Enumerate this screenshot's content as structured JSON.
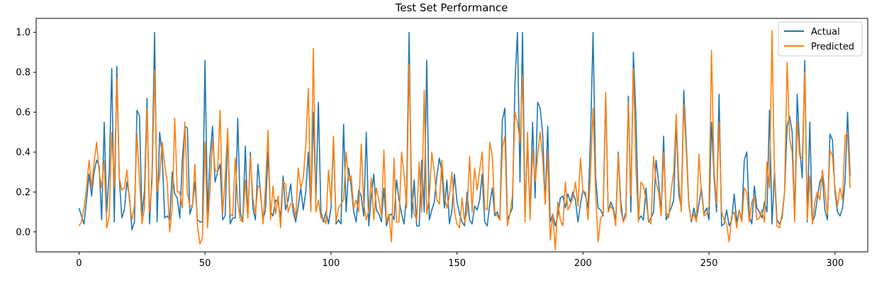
{
  "chart_data": {
    "type": "line",
    "title": "Test Set Performance",
    "xlabel": "",
    "ylabel": "",
    "xlim": [
      -17,
      313
    ],
    "ylim": [
      -0.1,
      1.07
    ],
    "x_ticks": [
      0,
      50,
      100,
      150,
      200,
      250,
      300
    ],
    "y_ticks": [
      0.0,
      0.2,
      0.4,
      0.6,
      0.8,
      1.0
    ],
    "x_tick_labels": [
      "0",
      "50",
      "100",
      "150",
      "200",
      "250",
      "300"
    ],
    "y_tick_labels": [
      "0.0",
      "0.2",
      "0.4",
      "0.6",
      "0.8",
      "1.0"
    ],
    "grid": false,
    "legend_position": "top-right",
    "series": [
      {
        "name": "Actual",
        "color": "#1f77b4",
        "values": [
          0.12,
          0.08,
          0.04,
          0.16,
          0.29,
          0.18,
          0.3,
          0.36,
          0.33,
          0.06,
          0.55,
          0.1,
          0.3,
          0.82,
          0.05,
          0.83,
          0.27,
          0.07,
          0.11,
          0.25,
          0.18,
          0.01,
          0.05,
          0.61,
          0.58,
          0.08,
          0.21,
          0.67,
          0.04,
          0.3,
          1.0,
          0.05,
          0.5,
          0.39,
          0.07,
          0.08,
          0.06,
          0.3,
          0.19,
          0.17,
          0.07,
          0.36,
          0.53,
          0.52,
          0.09,
          0.13,
          0.25,
          0.06,
          0.05,
          0.05,
          0.86,
          0.09,
          0.38,
          0.53,
          0.25,
          0.3,
          0.34,
          0.06,
          0.08,
          0.5,
          0.04,
          0.07,
          0.07,
          0.57,
          0.1,
          0.05,
          0.43,
          0.07,
          0.4,
          0.12,
          0.06,
          0.34,
          0.2,
          0.06,
          0.11,
          0.4,
          0.1,
          0.08,
          0.16,
          0.15,
          0.07,
          0.28,
          0.11,
          0.16,
          0.24,
          0.1,
          0.05,
          0.13,
          0.22,
          0.11,
          0.2,
          0.4,
          0.11,
          0.6,
          0.16,
          0.65,
          0.1,
          0.05,
          0.1,
          0.04,
          0.12,
          0.46,
          0.04,
          0.06,
          0.04,
          0.54,
          0.1,
          0.32,
          0.23,
          0.1,
          0.05,
          0.21,
          0.18,
          0.08,
          0.5,
          0.03,
          0.18,
          0.29,
          0.11,
          0.09,
          0.05,
          0.22,
          0.03,
          0.08,
          0.09,
          0.06,
          0.26,
          0.16,
          0.09,
          0.04,
          0.19,
          1.0,
          0.07,
          0.26,
          0.03,
          0.03,
          0.36,
          0.1,
          0.86,
          0.06,
          0.11,
          0.15,
          0.28,
          0.37,
          0.3,
          0.12,
          0.26,
          0.04,
          0.11,
          0.29,
          0.15,
          0.09,
          0.05,
          0.03,
          0.2,
          0.06,
          0.04,
          0.13,
          0.11,
          0.16,
          0.29,
          0.05,
          0.03,
          0.14,
          0.22,
          0.08,
          0.1,
          0.06,
          0.56,
          0.62,
          0.06,
          0.09,
          0.12,
          0.75,
          1.0,
          0.25,
          1.0,
          0.08,
          0.46,
          0.08,
          0.55,
          0.17,
          0.65,
          0.62,
          0.49,
          0.14,
          0.53,
          0.05,
          0.09,
          0.03,
          0.08,
          0.17,
          0.18,
          0.12,
          0.19,
          0.15,
          0.2,
          0.16,
          0.05,
          0.14,
          0.21,
          0.18,
          0.12,
          0.48,
          1.0,
          0.28,
          0.12,
          0.11,
          0.08,
          0.69,
          0.1,
          0.15,
          0.12,
          0.06,
          0.4,
          0.15,
          0.05,
          0.1,
          0.68,
          0.1,
          0.9,
          0.58,
          0.06,
          0.08,
          0.06,
          0.22,
          0.05,
          0.07,
          0.1,
          0.36,
          0.25,
          0.1,
          0.48,
          0.06,
          0.09,
          0.12,
          0.16,
          0.56,
          0.19,
          0.12,
          0.71,
          0.44,
          0.14,
          0.05,
          0.12,
          0.06,
          0.14,
          0.22,
          0.09,
          0.12,
          0.06,
          0.55,
          0.28,
          0.1,
          0.69,
          0.03,
          0.04,
          0.11,
          0.03,
          0.06,
          0.19,
          0.05,
          0.11,
          0.06,
          0.36,
          0.4,
          0.08,
          0.04,
          0.23,
          0.12,
          0.1,
          0.07,
          0.15,
          0.1,
          0.61,
          0.04,
          0.3,
          0.06,
          0.04,
          0.07,
          0.2,
          0.53,
          0.58,
          0.5,
          0.06,
          0.69,
          0.42,
          0.27,
          0.86,
          0.05,
          0.55,
          0.05,
          0.08,
          0.17,
          0.25,
          0.28,
          0.11,
          0.06,
          0.49,
          0.46,
          0.2,
          0.1,
          0.08,
          0.12,
          0.25,
          0.6,
          0.28
        ]
      },
      {
        "name": "Predicted",
        "color": "#ff7f0e",
        "values": [
          0.03,
          0.05,
          0.12,
          0.22,
          0.36,
          0.22,
          0.35,
          0.45,
          0.3,
          0.22,
          0.36,
          0.02,
          0.08,
          0.5,
          0.22,
          0.77,
          0.27,
          0.21,
          0.22,
          0.31,
          0.16,
          0.06,
          0.13,
          0.49,
          0.26,
          0.04,
          0.12,
          0.62,
          0.1,
          0.25,
          0.81,
          0.2,
          0.28,
          0.45,
          0.34,
          0.25,
          0.0,
          0.12,
          0.57,
          0.2,
          0.2,
          0.12,
          0.55,
          0.2,
          0.13,
          0.13,
          0.34,
          0.03,
          -0.06,
          -0.03,
          0.45,
          0.02,
          0.21,
          0.46,
          0.31,
          0.3,
          0.61,
          0.09,
          0.27,
          0.52,
          0.09,
          0.08,
          0.37,
          0.15,
          0.06,
          0.05,
          0.26,
          0.07,
          0.38,
          0.17,
          0.09,
          0.23,
          0.22,
          0.04,
          0.22,
          0.51,
          0.06,
          0.23,
          0.09,
          0.18,
          0.02,
          0.25,
          0.24,
          0.1,
          0.14,
          0.14,
          0.07,
          0.32,
          0.22,
          0.27,
          0.44,
          0.72,
          0.1,
          0.92,
          0.1,
          0.16,
          0.07,
          0.07,
          0.04,
          0.31,
          0.15,
          0.48,
          0.05,
          0.12,
          0.14,
          0.16,
          0.4,
          0.26,
          0.28,
          0.12,
          0.16,
          0.1,
          0.44,
          0.14,
          0.06,
          0.11,
          0.27,
          0.06,
          0.22,
          0.16,
          0.08,
          0.41,
          0.05,
          0.09,
          -0.05,
          0.37,
          0.05,
          0.05,
          0.4,
          0.29,
          0.12,
          0.84,
          0.22,
          0.09,
          0.06,
          0.35,
          0.1,
          0.71,
          0.09,
          0.17,
          0.4,
          0.3,
          0.16,
          0.14,
          0.36,
          0.18,
          0.12,
          0.18,
          0.3,
          0.1,
          0.04,
          0.02,
          0.17,
          0.05,
          0.1,
          0.38,
          0.1,
          0.32,
          0.21,
          0.31,
          0.4,
          0.12,
          0.11,
          0.45,
          0.38,
          0.1,
          0.08,
          0.06,
          0.42,
          0.48,
          0.03,
          0.09,
          0.18,
          0.6,
          0.55,
          0.45,
          0.78,
          0.05,
          0.5,
          0.06,
          0.41,
          0.25,
          0.38,
          0.5,
          0.37,
          0.14,
          0.4,
          -0.04,
          0.09,
          -0.09,
          0.15,
          0.06,
          0.03,
          0.25,
          0.11,
          0.14,
          0.17,
          0.25,
          0.13,
          0.37,
          0.2,
          0.2,
          0.06,
          0.3,
          0.62,
          0.2,
          -0.05,
          0.07,
          0.09,
          0.7,
          0.1,
          0.13,
          0.11,
          0.03,
          0.39,
          0.11,
          0.05,
          0.08,
          0.65,
          0.18,
          0.82,
          0.32,
          0.05,
          0.25,
          0.23,
          0.16,
          0.06,
          0.04,
          0.38,
          0.25,
          0.2,
          0.08,
          0.4,
          0.1,
          0.07,
          0.21,
          0.3,
          0.59,
          0.26,
          0.1,
          0.64,
          0.4,
          0.13,
          0.06,
          0.09,
          0.05,
          0.39,
          0.2,
          0.08,
          0.09,
          0.13,
          0.91,
          0.31,
          0.14,
          0.55,
          0.1,
          0.06,
          0.04,
          -0.05,
          0.08,
          0.1,
          0.02,
          0.11,
          0.05,
          0.22,
          0.2,
          0.05,
          0.15,
          0.18,
          0.06,
          0.07,
          0.11,
          0.05,
          0.35,
          0.22,
          1.01,
          0.27,
          0.03,
          0.02,
          0.09,
          0.2,
          0.85,
          0.47,
          0.4,
          0.05,
          0.55,
          0.38,
          0.37,
          0.8,
          0.06,
          0.28,
          0.04,
          0.15,
          0.2,
          0.16,
          0.31,
          0.21,
          0.09,
          0.41,
          0.38,
          0.22,
          0.13,
          0.22,
          0.16,
          0.48,
          0.5,
          0.22
        ]
      }
    ]
  }
}
